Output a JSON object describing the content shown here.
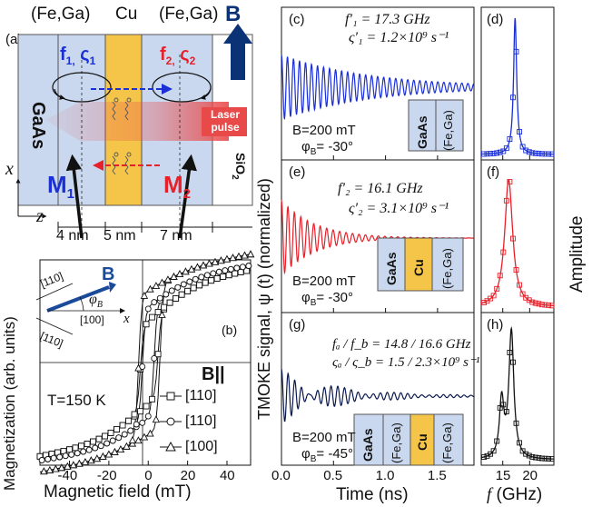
{
  "panel_a": {
    "label": "(a)",
    "top_labels": [
      "(Fe,Ga)",
      "Cu",
      "(Fe,Ga)"
    ],
    "field_label": "B",
    "f1_label": "f",
    "f1_sub": "1,",
    "s1_label": "ς",
    "s1_sub": "1",
    "f2_label": "f",
    "f2_sub": "2,",
    "s2_label": "ς",
    "s2_sub": "2",
    "substrate": "GaAs",
    "laser_label": "Laser\npulse",
    "m1_label": "M",
    "m1_sub": "1",
    "m2_label": "M",
    "m2_sub": "2",
    "sio2_label": "SiO",
    "sio2_sub": "2",
    "axis_x": "x",
    "axis_z": "z",
    "dims": [
      "4 nm",
      "5 nm",
      "7 nm"
    ],
    "colors": {
      "fe_layer": "#c9d8ee",
      "cu_layer": "#f5c54a",
      "blue": "#1a2fd6",
      "red": "#e8202a",
      "navy": "#0b3275",
      "laser": "#e84a4a"
    }
  },
  "panel_b": {
    "label": "(b)",
    "ylabel": "Magnetization (arb. units)",
    "xlabel": "Magnetic field (mT)",
    "inset_dirs": [
      "[110]",
      "[100]",
      "[110]"
    ],
    "inset_field": "B",
    "inset_angle": "φ",
    "inset_angle_sub": "B",
    "inset_axis": "x",
    "temperature": "T=150 K",
    "legend_title": "B||",
    "legend_items": [
      "[110]",
      "[110]",
      "[100]"
    ],
    "legend_markers": [
      "square",
      "circle",
      "triangle"
    ]
  },
  "panel_cde": {
    "ylabel": "TMOKE signal, ψ (t) (normalized)",
    "xlabel": "Time (ns)",
    "c": {
      "label": "(c)",
      "f": "f′₁ = 17.3 GHz",
      "s": "ς′₁ = 1.2×10⁹ s⁻¹",
      "b": "B=200 mT",
      "phi": "φ",
      "phi_sub": "B",
      "phi_val": "= -30°",
      "stack": [
        "GaAs",
        "(Fe,Ga)"
      ]
    },
    "e": {
      "label": "(e)",
      "f": "f′₂ = 16.1 GHz",
      "s": "ς′₂ = 3.1×10⁹ s⁻¹",
      "b": "B=200 mT",
      "phi": "φ",
      "phi_sub": "B",
      "phi_val": "= -30°",
      "stack": [
        "GaAs",
        "Cu",
        "(Fe,Ga)"
      ]
    },
    "g": {
      "label": "(g)",
      "f": "fₐ / f_b = 14.8 / 16.6  GHz",
      "s": "ςₐ / ς_b = 1.5 / 2.3×10⁹ s⁻¹",
      "b": "B=200 mT",
      "phi": "φ",
      "phi_sub": "B",
      "phi_val": "= -45°",
      "stack": [
        "GaAs",
        "(Fe,Ga)",
        "Cu",
        "(Fe,Ga)"
      ]
    }
  },
  "panel_dfh": {
    "labels": [
      "(d)",
      "(f)",
      "(h)"
    ],
    "ylabel": "Amplitude",
    "xlabel": "f (GHz)",
    "xlabel_italic": "f",
    "xlabel_rest": " (GHz)"
  },
  "chart_data": [
    {
      "type": "line",
      "id": "b",
      "xlabel": "Magnetic field (mT)",
      "ylabel": "Magnetization (arb. units)",
      "xlim": [
        -55,
        52
      ],
      "ticks_x": [
        -40,
        -20,
        0,
        20,
        40
      ],
      "series": [
        {
          "name": "[110]",
          "marker": "square",
          "coercive": [
            -4,
            5
          ]
        },
        {
          "name": "[110]",
          "marker": "circle",
          "coercive": [
            -3,
            3
          ]
        },
        {
          "name": "[100]",
          "marker": "triangle",
          "coercive": [
            -5,
            6
          ]
        }
      ]
    },
    {
      "type": "line",
      "id": "c",
      "xlim": [
        0,
        1.85
      ],
      "frequency_ghz": 17.3,
      "damping_per_s": 1200000000.0,
      "color": "#1a2fd6"
    },
    {
      "type": "line",
      "id": "e",
      "xlim": [
        0,
        1.85
      ],
      "frequency_ghz": 16.1,
      "damping_per_s": 3100000000.0,
      "color": "#e8202a"
    },
    {
      "type": "line",
      "id": "g",
      "xlim": [
        0,
        1.85
      ],
      "frequency_ghz": [
        14.8,
        16.6
      ],
      "damping_per_s": [
        1500000000.0,
        2300000000.0
      ],
      "color": "#0b1a4e",
      "ticks_x": [
        0.0,
        0.5,
        1.0,
        1.5
      ],
      "tick_labels_x": [
        "0.0",
        "0.5",
        "1.0",
        "1.5"
      ]
    },
    {
      "type": "line",
      "id": "d",
      "peak_ghz": 17.3,
      "color": "#1a2fd6"
    },
    {
      "type": "line",
      "id": "f",
      "peak_ghz": 16.1,
      "color": "#e8202a"
    },
    {
      "type": "line",
      "id": "h",
      "peaks_ghz": [
        14.8,
        16.6
      ],
      "color": "#111111",
      "ticks_x": [
        15,
        20
      ],
      "xlim": [
        11,
        24.5
      ]
    }
  ]
}
